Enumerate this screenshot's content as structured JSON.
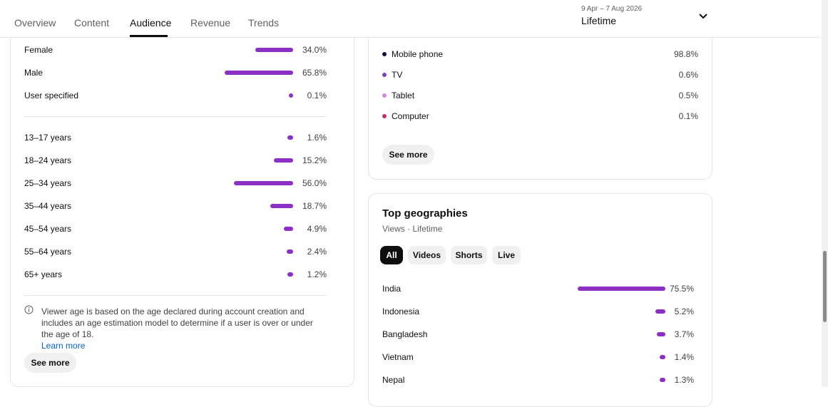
{
  "tabs": [
    "Overview",
    "Content",
    "Audience",
    "Revenue",
    "Trends"
  ],
  "date_range": {
    "range": "9 Apr – 7 Aug 2026",
    "period": "Lifetime"
  },
  "gender_age": {
    "gender": [
      {
        "name": "Female",
        "value": 34.0,
        "value_label": "34.0%"
      },
      {
        "name": "Male",
        "value": 65.8,
        "value_label": "65.8%"
      },
      {
        "name": "User specified",
        "value": 0.1,
        "value_label": "0.1%"
      }
    ],
    "age": [
      {
        "name": "13–17 years",
        "value": 1.6,
        "value_label": "1.6%"
      },
      {
        "name": "18–24 years",
        "value": 15.2,
        "value_label": "15.2%"
      },
      {
        "name": "25–34 years",
        "value": 56.0,
        "value_label": "56.0%"
      },
      {
        "name": "35–44 years",
        "value": 18.7,
        "value_label": "18.7%"
      },
      {
        "name": "45–54 years",
        "value": 4.9,
        "value_label": "4.9%"
      },
      {
        "name": "55–64 years",
        "value": 2.4,
        "value_label": "2.4%"
      },
      {
        "name": "65+ years",
        "value": 1.2,
        "value_label": "1.2%"
      }
    ],
    "note": "Viewer age is based on the age declared during account creation and includes an age estimation model to determine if a user is over or under the age of 18.",
    "link": "Learn more",
    "button": "See more"
  },
  "devices": {
    "rows": [
      {
        "name": "Mobile phone",
        "color": "#1c0b3d",
        "value_label": "98.8%"
      },
      {
        "name": "TV",
        "color": "#7a3fc0",
        "value_label": "0.6%"
      },
      {
        "name": "Tablet",
        "color": "#d383ea",
        "value_label": "0.5%"
      },
      {
        "name": "Computer",
        "color": "#b8336d",
        "value_label": "0.1%"
      }
    ],
    "button": "See more"
  },
  "geographies": {
    "title": "Top geographies",
    "subtitle": "Views · Lifetime",
    "filters": [
      "All",
      "Videos",
      "Shorts",
      "Live"
    ],
    "rows": [
      {
        "name": "India",
        "value": 75.5,
        "value_label": "75.5%"
      },
      {
        "name": "Indonesia",
        "value": 5.2,
        "value_label": "5.2%"
      },
      {
        "name": "Bangladesh",
        "value": 3.7,
        "value_label": "3.7%"
      },
      {
        "name": "Vietnam",
        "value": 1.4,
        "value_label": "1.4%"
      },
      {
        "name": "Nepal",
        "value": 1.3,
        "value_label": "1.3%"
      }
    ]
  }
}
